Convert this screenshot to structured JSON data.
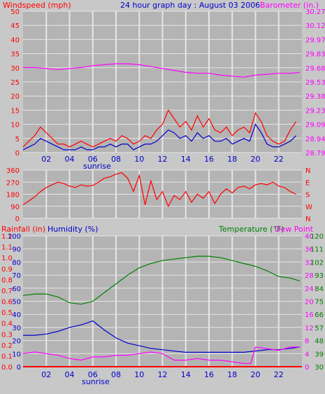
{
  "colors": {
    "background": "#C8C8C8",
    "plot": "#B4B4B4",
    "grid": "#E6E6E6",
    "wind": "#FF0000",
    "wind_avg": "#0000CC",
    "barometer": "#FF00FF",
    "direction": "#FF0000",
    "rain": "#FF0000",
    "humidity": "#0000CC",
    "temperature": "#008000",
    "dewpoint": "#FF00FF"
  },
  "chart_data": [
    {
      "type": "line",
      "title": "24 hour graph day : August 03 2006",
      "left_label": "Windspeed (mph)",
      "right_label": "Barometer (in.)",
      "x_ticks": [
        "02",
        "04",
        "06",
        "08",
        "10",
        "12",
        "14",
        "16",
        "18",
        "20",
        "22"
      ],
      "sunrise_label": "sunrise",
      "y_left_ticks": [
        "0",
        "5",
        "10",
        "15",
        "20",
        "25",
        "30",
        "35",
        "40",
        "45",
        "50"
      ],
      "y_right_ticks": [
        "28.79",
        "28.94",
        "29.09",
        "29.23",
        "29.38",
        "29.53",
        "29.68",
        "29.83",
        "29.97",
        "30.12",
        "30.27"
      ],
      "ylim_left": [
        0,
        50
      ],
      "ylim_right": [
        28.79,
        30.27
      ],
      "x_range": [
        0,
        24
      ],
      "grid": true,
      "series": [
        {
          "name": "Windspeed (mph)",
          "axis": "left",
          "x": [
            0,
            0.5,
            1,
            1.5,
            2,
            2.5,
            3,
            3.5,
            4,
            4.5,
            5,
            5.5,
            6,
            6.5,
            7,
            7.5,
            8,
            8.5,
            9,
            9.5,
            10,
            10.5,
            11,
            11.5,
            12,
            12.5,
            13,
            13.5,
            14,
            14.5,
            15,
            15.5,
            16,
            16.5,
            17,
            17.5,
            18,
            18.5,
            19,
            19.5,
            20,
            20.5,
            21,
            21.5,
            22,
            22.5,
            23,
            23.5
          ],
          "y": [
            2,
            4,
            6,
            9,
            7,
            5,
            3,
            3,
            2,
            3,
            4,
            3,
            2,
            3,
            4,
            5,
            4,
            6,
            5,
            3,
            4,
            6,
            5,
            8,
            10,
            15,
            12,
            9,
            11,
            8,
            13,
            9,
            12,
            8,
            7,
            9,
            6,
            8,
            9,
            7,
            14,
            11,
            6,
            4,
            3,
            4,
            8,
            11
          ]
        },
        {
          "name": "Average windspeed",
          "axis": "left",
          "x": [
            0,
            0.5,
            1,
            1.5,
            2,
            2.5,
            3,
            3.5,
            4,
            4.5,
            5,
            5.5,
            6,
            6.5,
            7,
            7.5,
            8,
            8.5,
            9,
            9.5,
            10,
            10.5,
            11,
            11.5,
            12,
            12.5,
            13,
            13.5,
            14,
            14.5,
            15,
            15.5,
            16,
            16.5,
            17,
            17.5,
            18,
            18.5,
            19,
            19.5,
            20,
            20.5,
            21,
            21.5,
            22,
            22.5,
            23,
            23.5
          ],
          "y": [
            1,
            2,
            3,
            5,
            4,
            3,
            2,
            1,
            1,
            1,
            2,
            1,
            1,
            2,
            2,
            3,
            2,
            3,
            3,
            1,
            2,
            3,
            3,
            4,
            6,
            8,
            7,
            5,
            6,
            4,
            7,
            5,
            6,
            4,
            4,
            5,
            3,
            4,
            5,
            4,
            10,
            7,
            3,
            2,
            2,
            3,
            4,
            6
          ]
        },
        {
          "name": "Barometer (in.)",
          "axis": "right",
          "x": [
            0,
            1,
            2,
            3,
            4,
            5,
            6,
            7,
            8,
            9,
            10,
            11,
            12,
            13,
            14,
            15,
            16,
            17,
            18,
            19,
            20,
            21,
            22,
            23,
            23.8
          ],
          "y": [
            29.68,
            29.68,
            29.67,
            29.66,
            29.67,
            29.68,
            29.7,
            29.71,
            29.72,
            29.72,
            29.71,
            29.69,
            29.67,
            29.65,
            29.63,
            29.62,
            29.62,
            29.6,
            29.59,
            29.58,
            29.6,
            29.61,
            29.62,
            29.62,
            29.63
          ]
        }
      ]
    },
    {
      "type": "line",
      "y_left_ticks": [
        "0",
        "90",
        "180",
        "270",
        "360"
      ],
      "y_right_ticks": [
        "N",
        "W",
        "S",
        "E",
        "N"
      ],
      "ylim_left": [
        0,
        360
      ],
      "x_range": [
        0,
        24
      ],
      "grid": true,
      "series": [
        {
          "name": "Wind direction",
          "axis": "left",
          "x": [
            0,
            0.5,
            1,
            1.5,
            2,
            2.5,
            3,
            3.5,
            4,
            4.5,
            5,
            5.5,
            6,
            6.5,
            7,
            7.5,
            8,
            8.5,
            9,
            9.5,
            10,
            10.5,
            11,
            11.5,
            12,
            12.5,
            13,
            13.5,
            14,
            14.5,
            15,
            15.5,
            16,
            16.5,
            17,
            17.5,
            18,
            18.5,
            19,
            19.5,
            20,
            20.5,
            21,
            21.5,
            22,
            22.5,
            23,
            23.5
          ],
          "y": [
            100,
            130,
            160,
            200,
            230,
            250,
            270,
            260,
            240,
            230,
            250,
            240,
            245,
            270,
            300,
            310,
            330,
            340,
            300,
            200,
            320,
            100,
            280,
            140,
            200,
            90,
            170,
            140,
            200,
            120,
            180,
            150,
            200,
            110,
            180,
            220,
            190,
            230,
            240,
            220,
            250,
            260,
            250,
            270,
            240,
            230,
            200,
            180
          ]
        }
      ]
    },
    {
      "type": "line",
      "left_label": "Rainfall (in)",
      "left2_label": "Humidity (%)",
      "right_label": "Temperature (°F)",
      "right2_label": "Dew Point",
      "x_ticks": [
        "02",
        "04",
        "06",
        "08",
        "10",
        "12",
        "14",
        "16",
        "18",
        "20",
        "22"
      ],
      "sunrise_label": "sunrise",
      "y_rain_ticks": [
        "0.0",
        "0.1",
        "0.2",
        "0.3",
        "0.4",
        "0.5",
        "0.6",
        "0.7",
        "0.8",
        "0.9",
        "1.0",
        "1.1",
        "1.2"
      ],
      "y_humidity_ticks": [
        "0",
        "10",
        "20",
        "30",
        "40",
        "50",
        "60",
        "70",
        "80",
        "90",
        "100"
      ],
      "y_dewpoint_ticks": [
        "0",
        "4",
        "8",
        "12",
        "16",
        "20",
        "24",
        "28",
        "32",
        "36",
        "40"
      ],
      "y_temperature_ticks": [
        "30",
        "39",
        "48",
        "57",
        "66",
        "75",
        "84",
        "93",
        "102",
        "111",
        "120"
      ],
      "ylim_humidity": [
        0,
        100
      ],
      "ylim_temperature": [
        30,
        120
      ],
      "x_range": [
        0,
        24
      ],
      "grid": true,
      "series": [
        {
          "name": "Temperature (°F)",
          "axis": "temperature",
          "x": [
            0,
            1,
            2,
            3,
            4,
            5,
            6,
            7,
            8,
            9,
            10,
            11,
            12,
            13,
            14,
            15,
            16,
            17,
            18,
            19,
            20,
            21,
            22,
            23,
            23.8
          ],
          "y": [
            79,
            80,
            80,
            78,
            74,
            73,
            75,
            81,
            87,
            93,
            98,
            101,
            103,
            104,
            105,
            106,
            106,
            105,
            103,
            101,
            99,
            96,
            92,
            91,
            89
          ]
        },
        {
          "name": "Humidity (%)",
          "axis": "humidity",
          "x": [
            0,
            1,
            2,
            3,
            4,
            5,
            6,
            7,
            8,
            9,
            10,
            11,
            12,
            13,
            14,
            15,
            16,
            17,
            18,
            19,
            20,
            21,
            22,
            23,
            23.8
          ],
          "y": [
            24,
            24,
            25,
            27,
            30,
            32,
            35,
            28,
            22,
            18,
            16,
            14,
            13,
            12,
            11,
            11,
            11,
            11,
            11,
            11,
            12,
            13,
            13,
            14,
            15
          ]
        },
        {
          "name": "Dew Point",
          "axis": "dewpoint",
          "x": [
            0,
            1,
            2,
            3,
            4,
            5,
            6,
            7,
            8,
            9,
            10,
            11,
            12,
            13,
            14,
            15,
            16,
            17,
            18,
            19,
            19.6,
            20,
            21,
            22,
            23,
            23.8
          ],
          "y": [
            4,
            4.5,
            4,
            3.5,
            2.5,
            2,
            3,
            3,
            3.5,
            3.5,
            4,
            4.5,
            4,
            2,
            2,
            2.5,
            2,
            2,
            1.5,
            1,
            1,
            6,
            5.5,
            5,
            6,
            6
          ]
        },
        {
          "name": "Rainfall (in)",
          "axis": "rain",
          "x": [
            0,
            24
          ],
          "y": [
            0,
            0
          ]
        }
      ]
    }
  ]
}
